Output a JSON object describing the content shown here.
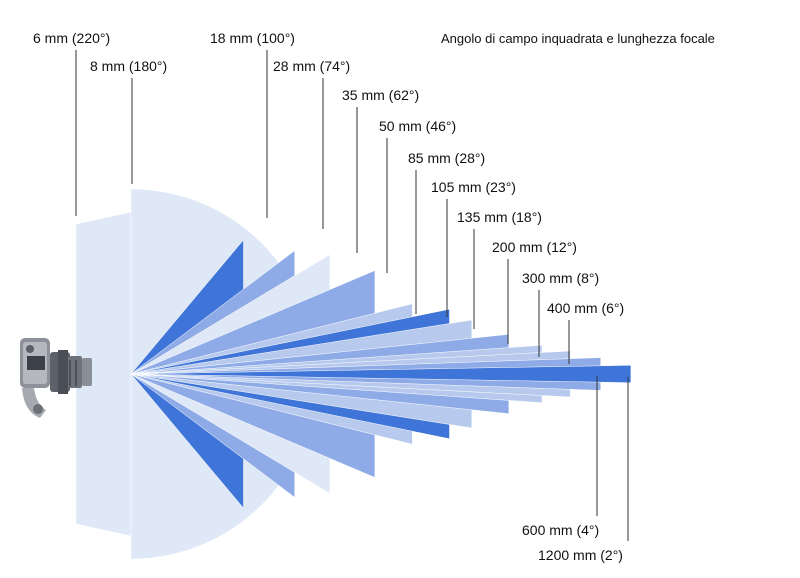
{
  "title": "Angolo di campo inquadrata e lunghezza focale",
  "lenses": [
    {
      "label": "6 mm (220°)",
      "focal_mm": 6,
      "angle_deg": 220
    },
    {
      "label": "8 mm (180°)",
      "focal_mm": 8,
      "angle_deg": 180
    },
    {
      "label": "18 mm (100°)",
      "focal_mm": 18,
      "angle_deg": 100
    },
    {
      "label": "28 mm (74°)",
      "focal_mm": 28,
      "angle_deg": 74
    },
    {
      "label": "35 mm (62°)",
      "focal_mm": 35,
      "angle_deg": 62
    },
    {
      "label": "50 mm (46°)",
      "focal_mm": 50,
      "angle_deg": 46
    },
    {
      "label": "85 mm (28°)",
      "focal_mm": 85,
      "angle_deg": 28
    },
    {
      "label": "105 mm (23°)",
      "focal_mm": 105,
      "angle_deg": 23
    },
    {
      "label": "135 mm (18°)",
      "focal_mm": 135,
      "angle_deg": 18
    },
    {
      "label": "200 mm (12°)",
      "focal_mm": 200,
      "angle_deg": 12
    },
    {
      "label": "300 mm (8°)",
      "focal_mm": 300,
      "angle_deg": 8
    },
    {
      "label": "400 mm (6°)",
      "focal_mm": 400,
      "angle_deg": 6
    },
    {
      "label": "600 mm (4°)",
      "focal_mm": 600,
      "angle_deg": 4
    },
    {
      "label": "1200 mm (2°)",
      "focal_mm": 1200,
      "angle_deg": 2
    }
  ],
  "colors": {
    "pale": "#dfe8f6",
    "light": "#b7caee",
    "mid": "#8eabe8",
    "dark": "#3f74d8",
    "leader": "#333333",
    "camera": "#6b6f78"
  },
  "icons": {
    "camera": "camera-icon"
  }
}
